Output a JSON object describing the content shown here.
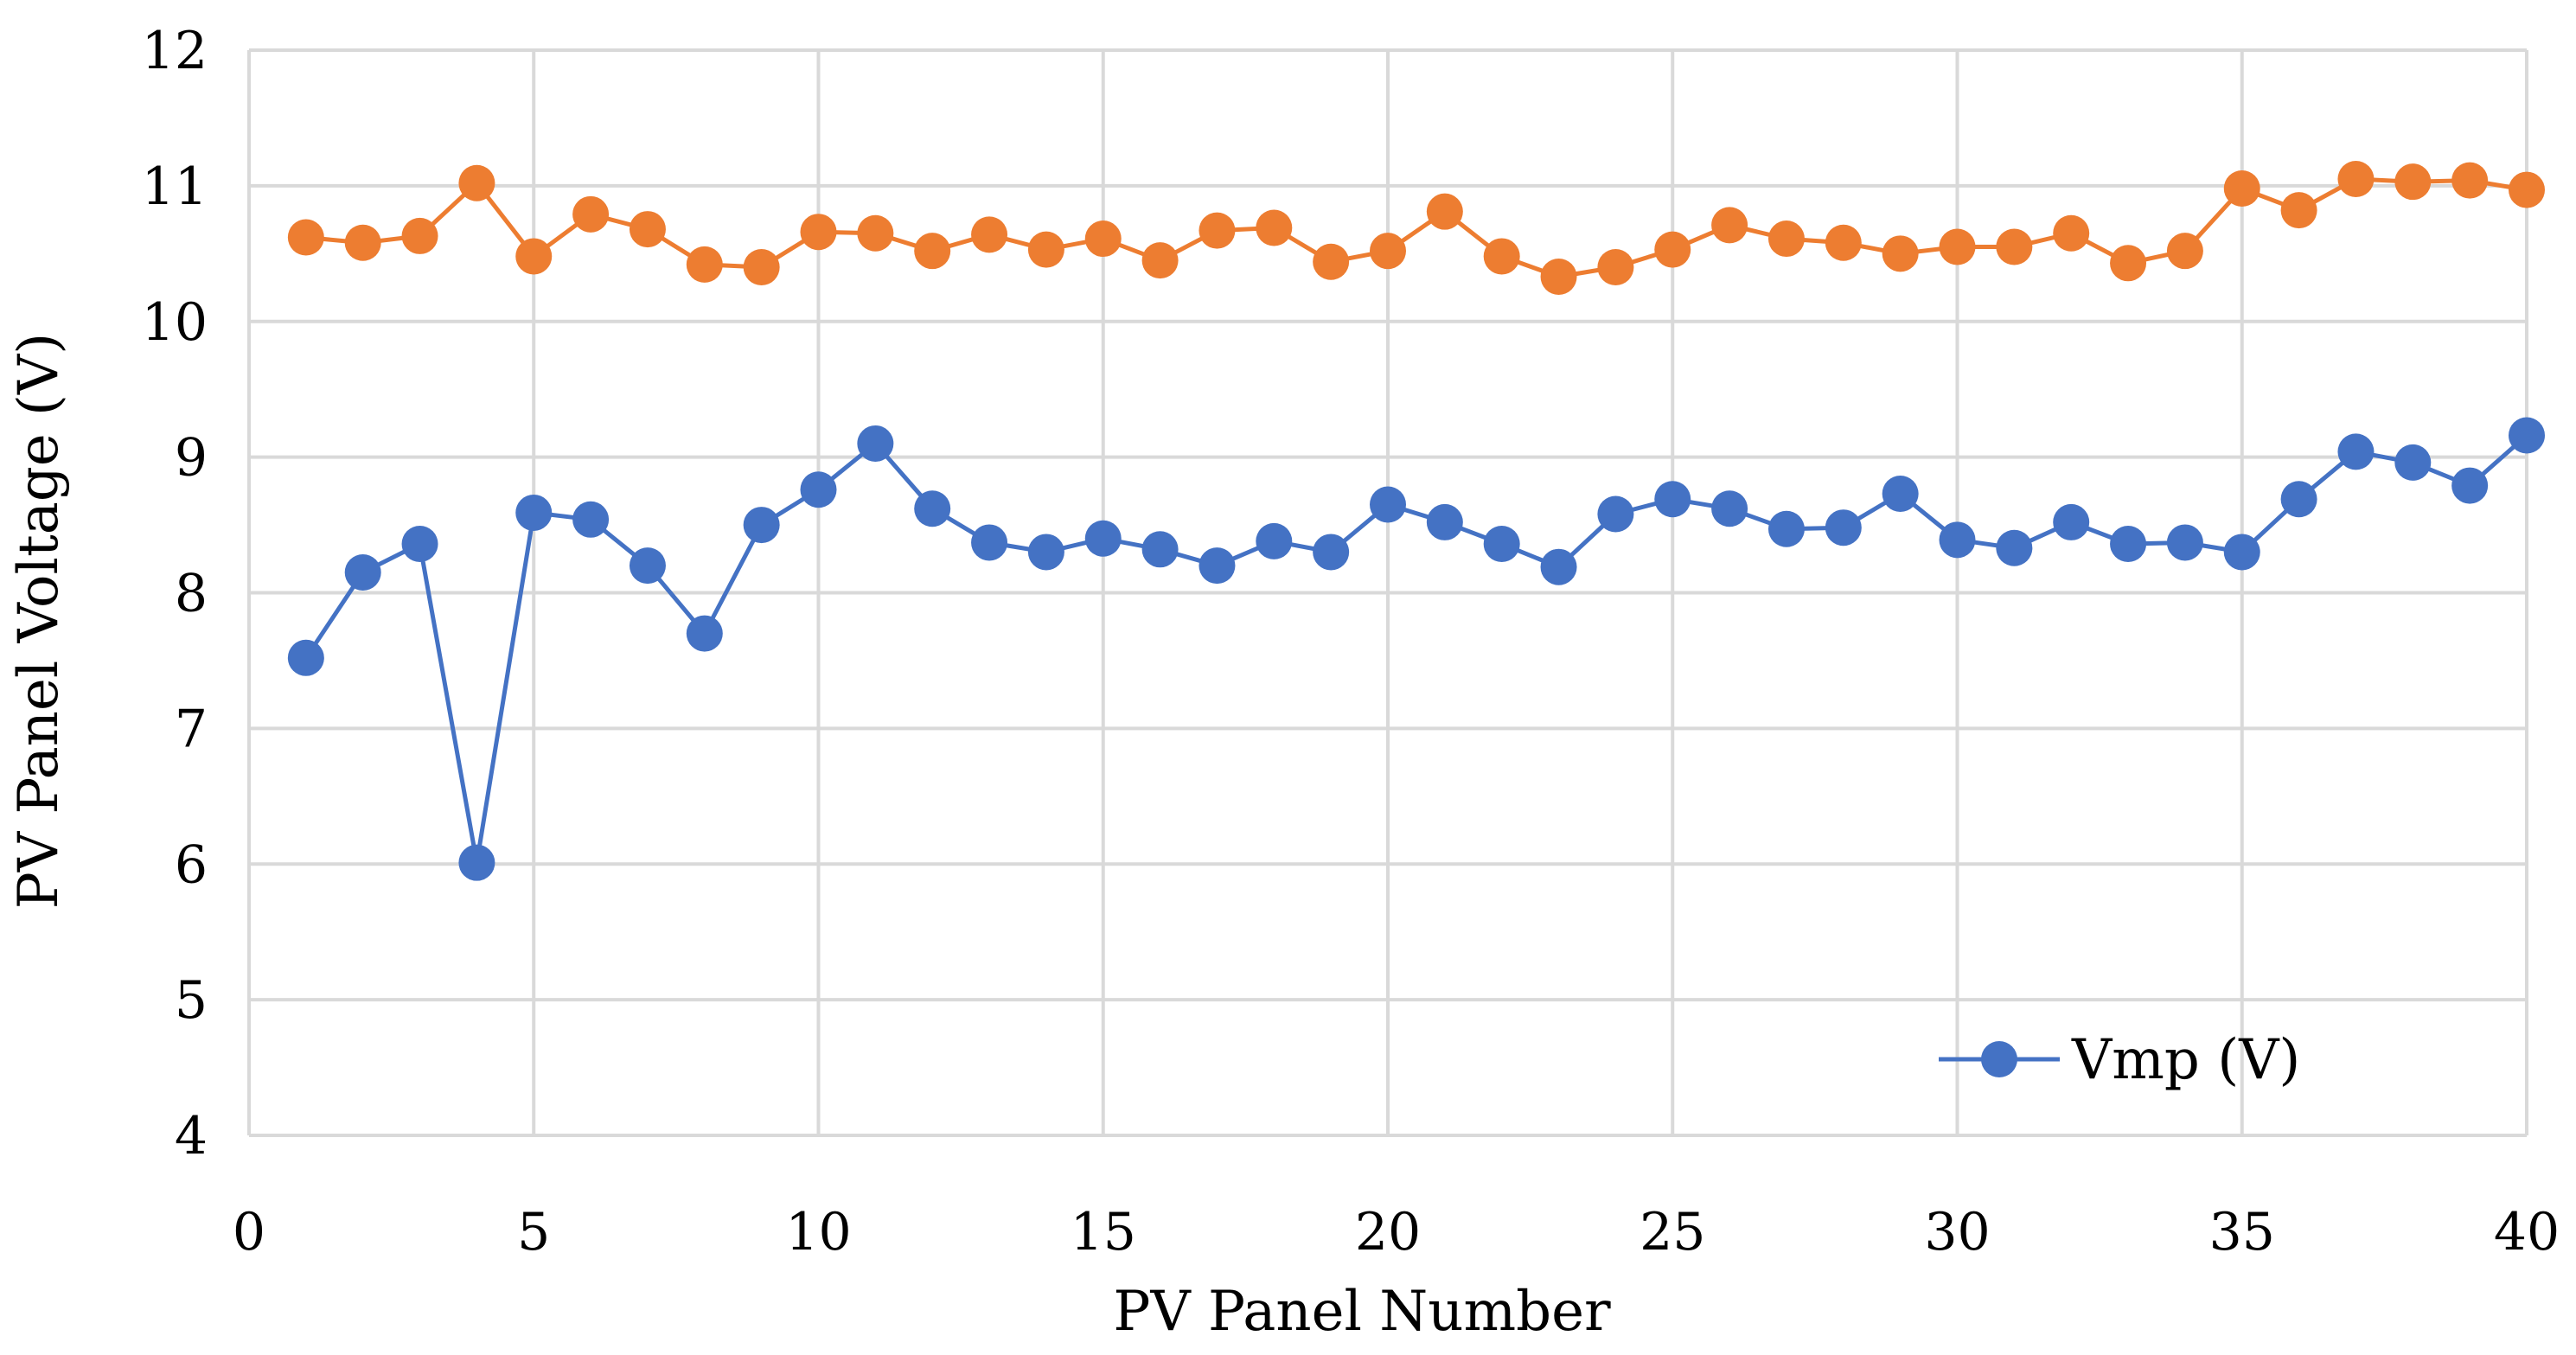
{
  "chart_data": {
    "type": "line",
    "title": "",
    "xlabel": "PV Panel Number",
    "ylabel": "PV Panel Voltage (V)",
    "xlim": [
      0,
      40
    ],
    "ylim": [
      4,
      12
    ],
    "xticks": [
      0,
      5,
      10,
      15,
      20,
      25,
      30,
      35,
      40
    ],
    "yticks": [
      4,
      5,
      6,
      7,
      8,
      9,
      10,
      11,
      12
    ],
    "grid": true,
    "legend_position": "bottom-right",
    "x": [
      1,
      2,
      3,
      4,
      5,
      6,
      7,
      8,
      9,
      10,
      11,
      12,
      13,
      14,
      15,
      16,
      17,
      18,
      19,
      20,
      21,
      22,
      23,
      24,
      25,
      26,
      27,
      28,
      29,
      30,
      31,
      32,
      33,
      34,
      35,
      36,
      37,
      38,
      39,
      40
    ],
    "series": [
      {
        "color": "#ed7d31",
        "show_in_legend": false,
        "values": [
          10.62,
          10.58,
          10.63,
          11.02,
          10.48,
          10.79,
          10.68,
          10.42,
          10.4,
          10.66,
          10.65,
          10.52,
          10.64,
          10.53,
          10.61,
          10.45,
          10.67,
          10.69,
          10.44,
          10.52,
          10.81,
          10.48,
          10.33,
          10.4,
          10.53,
          10.71,
          10.61,
          10.58,
          10.5,
          10.55,
          10.55,
          10.65,
          10.43,
          10.52,
          10.98,
          10.82,
          11.05,
          11.03,
          11.04,
          10.97
        ]
      },
      {
        "name": "Vmp (V)",
        "color": "#4472c4",
        "show_in_legend": true,
        "values": [
          7.52,
          8.15,
          8.36,
          6.01,
          8.59,
          8.54,
          8.2,
          7.7,
          8.5,
          8.76,
          9.1,
          8.62,
          8.37,
          8.3,
          8.4,
          8.32,
          8.2,
          8.38,
          8.3,
          8.65,
          8.52,
          8.36,
          8.19,
          8.58,
          8.69,
          8.62,
          8.47,
          8.48,
          8.73,
          8.39,
          8.33,
          8.52,
          8.36,
          8.37,
          8.3,
          8.69,
          9.04,
          8.96,
          8.79,
          9.16
        ]
      }
    ]
  }
}
